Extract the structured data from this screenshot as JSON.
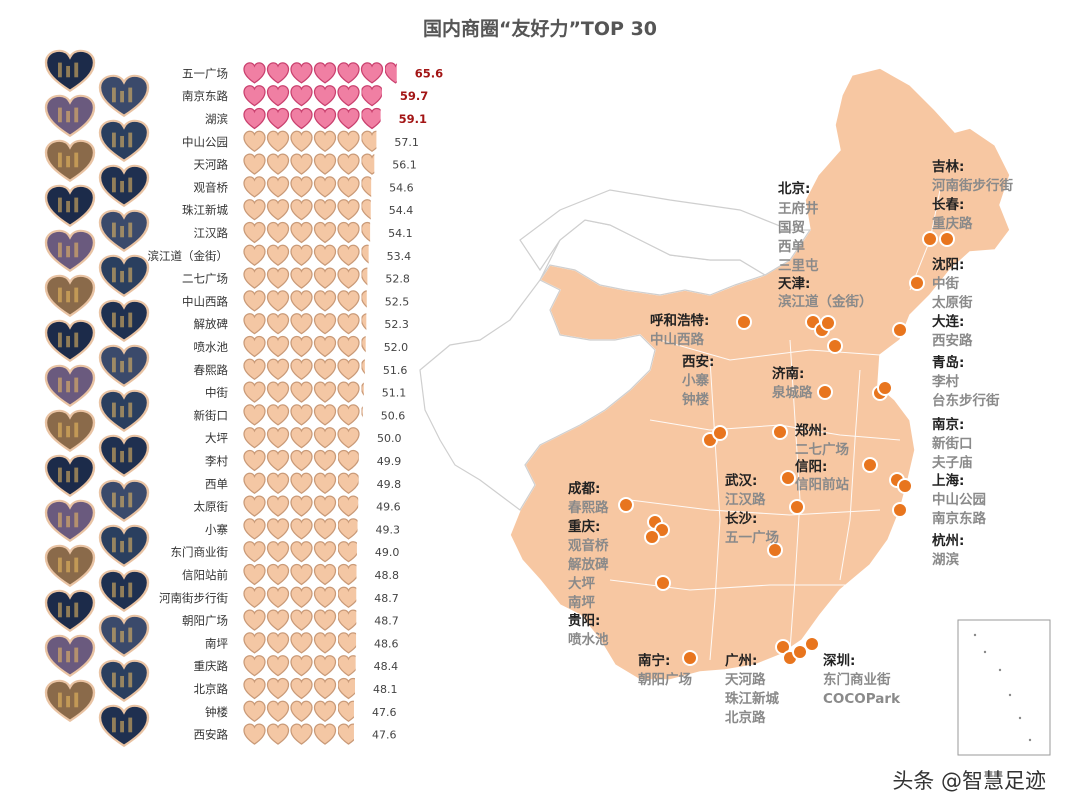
{
  "title": "国内商圈“友好力”TOP 30",
  "chart_data": {
    "type": "bar",
    "title": "国内商圈“友好力”TOP 30",
    "xlabel": "",
    "ylabel": "",
    "xlim": [
      0,
      70
    ],
    "hearts": 7,
    "highlight_top": 3,
    "colors": {
      "top": "#f07fa3",
      "top_stroke": "#c9406e",
      "rest": "#f4c7a4",
      "rest_stroke": "#c99a78"
    },
    "categories": [
      "五一广场",
      "南京东路",
      "湖滨",
      "中山公园",
      "天河路",
      "观音桥",
      "珠江新城",
      "江汉路",
      "滨江道（金街）",
      "二七广场",
      "中山西路",
      "解放碑",
      "喷水池",
      "春熙路",
      "中街",
      "新街口",
      "大坪",
      "李村",
      "西单",
      "太原街",
      "小寨",
      "东门商业街",
      "信阳站前",
      "河南街步行街",
      "朝阳广场",
      "南坪",
      "重庆路",
      "北京路",
      "钟楼",
      "西安路"
    ],
    "values": [
      65.6,
      59.7,
      59.1,
      57.1,
      56.1,
      54.6,
      54.4,
      54.1,
      53.4,
      52.8,
      52.5,
      52.3,
      52.0,
      51.6,
      51.1,
      50.6,
      50.0,
      49.9,
      49.8,
      49.6,
      49.3,
      49.0,
      48.8,
      48.7,
      48.7,
      48.6,
      48.4,
      48.1,
      47.6,
      47.6
    ],
    "value_labels": [
      "65.6",
      "59.7",
      "59.1",
      "57.1",
      "56.1",
      "54.6",
      "54.4",
      "54.1",
      "53.4",
      "52.8",
      "52.5",
      "52.3",
      "52.0",
      "51.6",
      "51.1",
      "50.6",
      "50.0",
      "49.9",
      "49.8",
      "49.6",
      "49.3",
      "49.0",
      "48.8",
      "48.7",
      "48.7",
      "48.6",
      "48.4",
      "48.1",
      "47.6",
      "47.6"
    ]
  },
  "map": {
    "fill": "#f7c7a2",
    "marker": "#e8751e",
    "annotations": [
      {
        "city": "北京:",
        "spots": [
          "王府井",
          "国贸",
          "西单",
          "三里屯"
        ]
      },
      {
        "city": "天津:",
        "spots": [
          "滨江道（金街）"
        ]
      },
      {
        "city": "吉林:",
        "spots": [
          "河南街步行街"
        ]
      },
      {
        "city": "长春:",
        "spots": [
          "重庆路"
        ]
      },
      {
        "city": "沈阳:",
        "spots": [
          "中街",
          "太原街"
        ]
      },
      {
        "city": "大连:",
        "spots": [
          "西安路"
        ]
      },
      {
        "city": "青岛:",
        "spots": [
          "李村",
          "台东步行街"
        ]
      },
      {
        "city": "南京:",
        "spots": [
          "新街口",
          "夫子庙"
        ]
      },
      {
        "city": "上海:",
        "spots": [
          "中山公园",
          "南京东路"
        ]
      },
      {
        "city": "杭州:",
        "spots": [
          "湖滨"
        ]
      },
      {
        "city": "呼和浩特:",
        "spots": [
          "中山西路"
        ]
      },
      {
        "city": "西安:",
        "spots": [
          "小寨",
          "钟楼"
        ]
      },
      {
        "city": "济南:",
        "spots": [
          "泉城路"
        ]
      },
      {
        "city": "郑州:",
        "spots": [
          "二七广场"
        ]
      },
      {
        "city": "信阳:",
        "spots": [
          "信阳前站"
        ]
      },
      {
        "city": "武汉:",
        "spots": [
          "江汉路"
        ]
      },
      {
        "city": "长沙:",
        "spots": [
          "五一广场"
        ]
      },
      {
        "city": "成都:",
        "spots": [
          "春熙路"
        ]
      },
      {
        "city": "重庆:",
        "spots": [
          "观音桥",
          "解放碑",
          "大坪",
          "南坪"
        ]
      },
      {
        "city": "贵阳:",
        "spots": [
          "喷水池"
        ]
      },
      {
        "city": "南宁:",
        "spots": [
          "朝阳广场"
        ]
      },
      {
        "city": "广州:",
        "spots": [
          "天河路",
          "珠江新城",
          "北京路"
        ]
      },
      {
        "city": "深圳:",
        "spots": [
          "东门商业街",
          "COCOPark"
        ]
      }
    ]
  },
  "thumbnails": {
    "count": 30,
    "palette": [
      "#1c2b4a",
      "#3b4a6b",
      "#6a5a7e",
      "#2a3f5f",
      "#8a6a4a",
      "#1f3050"
    ]
  },
  "watermark": "头条 @智慧足迹"
}
